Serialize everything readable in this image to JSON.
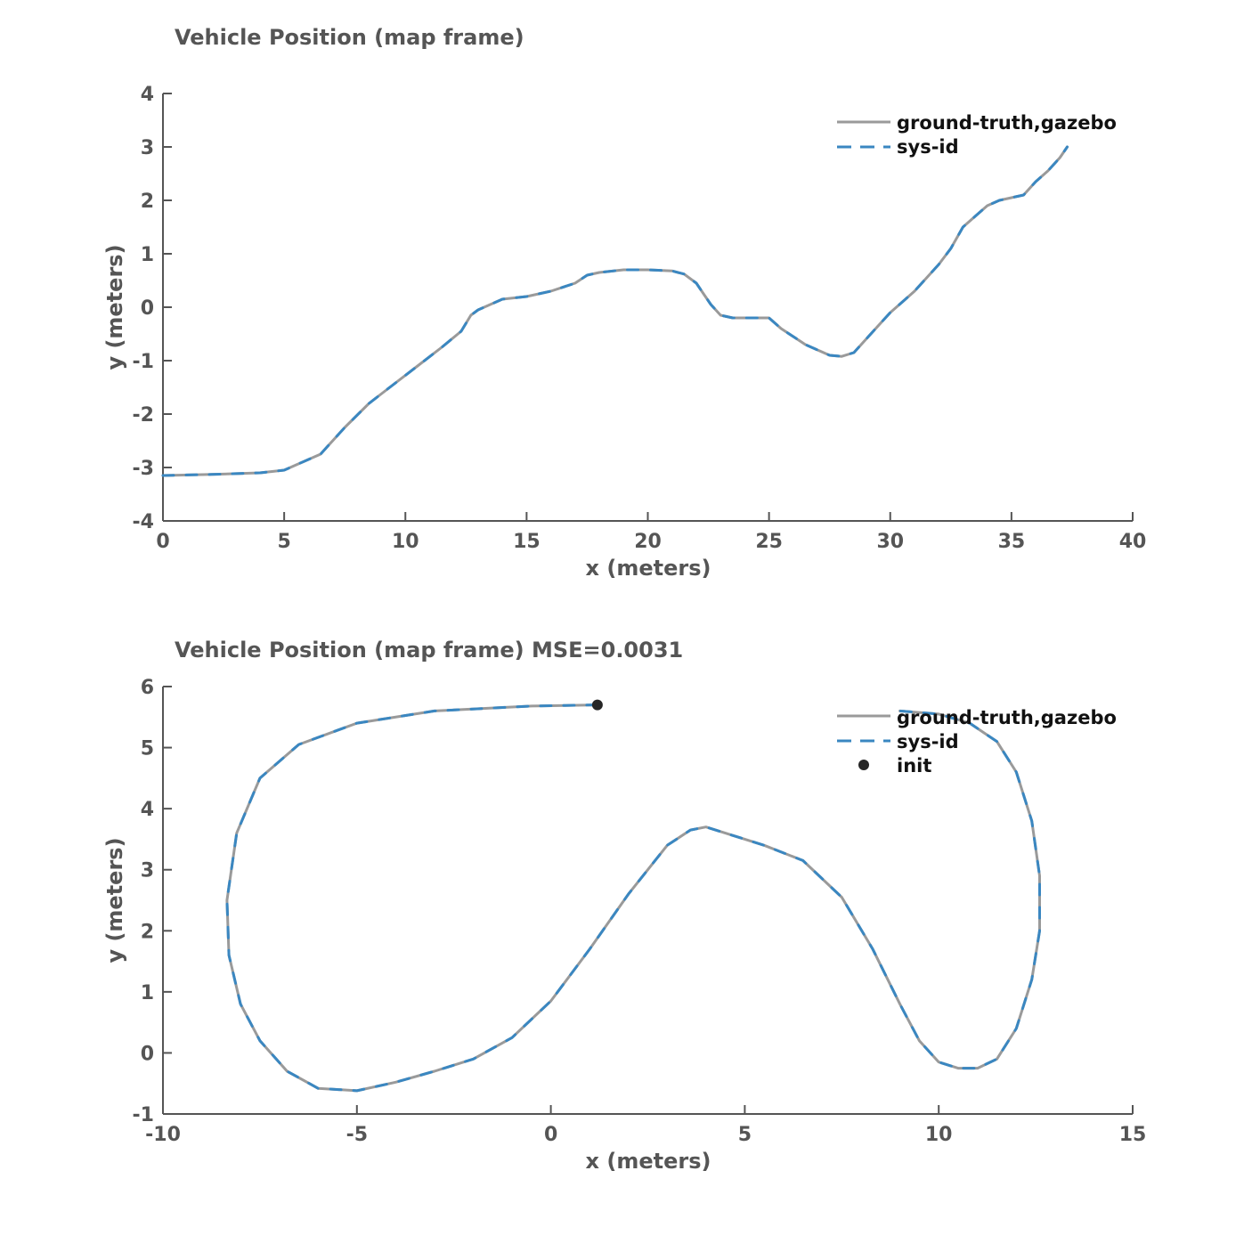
{
  "colors": {
    "ground_truth": "#9a9a9a",
    "sys_id": "#3a87c1",
    "init_marker": "#262626",
    "axis": "#555555"
  },
  "chart_data": [
    {
      "type": "line",
      "title": "Vehicle Position (map frame)",
      "xlabel": "x (meters)",
      "ylabel": "y (meters)",
      "xlim": [
        0,
        40
      ],
      "ylim": [
        -4,
        4
      ],
      "xticks": [
        0,
        5,
        10,
        15,
        20,
        25,
        30,
        35,
        40
      ],
      "yticks": [
        -4,
        -3,
        -2,
        -1,
        0,
        1,
        2,
        3,
        4
      ],
      "xtick_labels": [
        "0",
        "5",
        "10",
        "15",
        "20",
        "25",
        "30",
        "35",
        "40"
      ],
      "ytick_labels": [
        "-4",
        "-3",
        "-2",
        "-1",
        "0",
        "1",
        "2",
        "3",
        "4"
      ],
      "grid": false,
      "legend_position": "top-right",
      "series": [
        {
          "name": "ground-truth,gazebo",
          "style": "solid",
          "x": [
            0,
            2,
            4,
            5,
            5.5,
            6,
            6.5,
            6.8,
            7.5,
            8.5,
            9.5,
            10.5,
            11.5,
            12.3,
            12.7,
            13,
            13.5,
            14,
            15,
            16,
            17,
            17.5,
            18,
            19,
            20,
            21,
            21.5,
            22,
            22.3,
            22.6,
            23,
            23.5,
            24,
            25,
            25.5,
            26,
            26.5,
            27,
            27.5,
            28,
            28.5,
            29,
            29.5,
            30,
            31,
            32,
            32.5,
            33,
            33.5,
            34,
            34.5,
            35,
            35.5,
            36,
            36.5,
            37,
            37.3
          ],
          "y": [
            -3.15,
            -3.13,
            -3.1,
            -3.05,
            -2.95,
            -2.85,
            -2.75,
            -2.6,
            -2.25,
            -1.8,
            -1.45,
            -1.1,
            -0.75,
            -0.45,
            -0.15,
            -0.05,
            0.05,
            0.15,
            0.2,
            0.3,
            0.45,
            0.6,
            0.65,
            0.7,
            0.7,
            0.68,
            0.62,
            0.45,
            0.25,
            0.05,
            -0.15,
            -0.2,
            -0.2,
            -0.2,
            -0.4,
            -0.55,
            -0.7,
            -0.8,
            -0.9,
            -0.92,
            -0.85,
            -0.6,
            -0.35,
            -0.1,
            0.3,
            0.8,
            1.1,
            1.5,
            1.7,
            1.9,
            2.0,
            2.05,
            2.1,
            2.35,
            2.55,
            2.8,
            3.0
          ]
        },
        {
          "name": "sys-id",
          "style": "dashed",
          "x": [
            0,
            2,
            4,
            5,
            5.5,
            6,
            6.5,
            6.8,
            7.5,
            8.5,
            9.5,
            10.5,
            11.5,
            12.3,
            12.7,
            13,
            13.5,
            14,
            15,
            16,
            17,
            17.5,
            18,
            19,
            20,
            21,
            21.5,
            22,
            22.3,
            22.6,
            23,
            23.5,
            24,
            25,
            25.5,
            26,
            26.5,
            27,
            27.5,
            28,
            28.5,
            29,
            29.5,
            30,
            31,
            32,
            32.5,
            33,
            33.5,
            34,
            34.5,
            35,
            35.5,
            36,
            36.5,
            37,
            37.3
          ],
          "y": [
            -3.15,
            -3.13,
            -3.1,
            -3.05,
            -2.95,
            -2.85,
            -2.75,
            -2.6,
            -2.25,
            -1.8,
            -1.45,
            -1.1,
            -0.75,
            -0.45,
            -0.15,
            -0.05,
            0.05,
            0.15,
            0.2,
            0.3,
            0.45,
            0.6,
            0.65,
            0.7,
            0.7,
            0.68,
            0.62,
            0.45,
            0.25,
            0.05,
            -0.15,
            -0.2,
            -0.2,
            -0.2,
            -0.4,
            -0.55,
            -0.7,
            -0.8,
            -0.9,
            -0.92,
            -0.85,
            -0.6,
            -0.35,
            -0.1,
            0.3,
            0.8,
            1.1,
            1.5,
            1.7,
            1.9,
            2.0,
            2.05,
            2.1,
            2.35,
            2.55,
            2.8,
            3.0
          ]
        }
      ]
    },
    {
      "type": "line",
      "title": "Vehicle Position (map frame) MSE=0.0031",
      "xlabel": "x (meters)",
      "ylabel": "y (meters)",
      "xlim": [
        -10,
        15
      ],
      "ylim": [
        -1,
        6
      ],
      "xticks": [
        -10,
        -5,
        0,
        5,
        10,
        15
      ],
      "yticks": [
        -1,
        0,
        1,
        2,
        3,
        4,
        5,
        6
      ],
      "xtick_labels": [
        "-10",
        "-5",
        "0",
        "5",
        "10",
        "15"
      ],
      "ytick_labels": [
        "-1",
        "0",
        "1",
        "2",
        "3",
        "4",
        "5",
        "6"
      ],
      "grid": false,
      "legend_position": "top-right",
      "series": [
        {
          "name": "ground-truth,gazebo",
          "style": "solid",
          "x": [
            1.2,
            -0.5,
            -3,
            -5,
            -6.5,
            -7.5,
            -8.1,
            -8.35,
            -8.3,
            -8.0,
            -7.5,
            -6.8,
            -6.0,
            -5.0,
            -4.0,
            -3.0,
            -2.0,
            -1.0,
            0.0,
            1.0,
            2.0,
            3.0,
            3.6,
            4.0,
            4.5,
            5.5,
            6.5,
            7.5,
            8.3,
            9.0,
            9.5,
            10.0,
            10.5,
            11.0,
            11.5,
            12.0,
            12.4,
            12.6,
            12.6,
            12.4,
            12.0,
            11.5,
            10.8,
            10.0,
            9.0
          ],
          "y": [
            5.7,
            5.68,
            5.6,
            5.4,
            5.05,
            4.5,
            3.6,
            2.5,
            1.6,
            0.8,
            0.2,
            -0.3,
            -0.58,
            -0.62,
            -0.48,
            -0.3,
            -0.1,
            0.25,
            0.85,
            1.7,
            2.6,
            3.4,
            3.65,
            3.7,
            3.6,
            3.4,
            3.15,
            2.55,
            1.7,
            0.8,
            0.2,
            -0.15,
            -0.25,
            -0.25,
            -0.1,
            0.4,
            1.2,
            2.0,
            2.9,
            3.8,
            4.6,
            5.1,
            5.4,
            5.55,
            5.6
          ]
        },
        {
          "name": "sys-id",
          "style": "dashed",
          "x": [
            1.2,
            -0.5,
            -3,
            -5,
            -6.5,
            -7.5,
            -8.1,
            -8.35,
            -8.3,
            -8.0,
            -7.5,
            -6.8,
            -6.0,
            -5.0,
            -4.0,
            -3.0,
            -2.0,
            -1.0,
            0.0,
            1.0,
            2.0,
            3.0,
            3.6,
            4.0,
            4.5,
            5.5,
            6.5,
            7.5,
            8.3,
            9.0,
            9.5,
            10.0,
            10.5,
            11.0,
            11.5,
            12.0,
            12.4,
            12.6,
            12.6,
            12.4,
            12.0,
            11.5,
            10.8,
            10.0,
            9.0
          ],
          "y": [
            5.7,
            5.68,
            5.6,
            5.4,
            5.05,
            4.5,
            3.6,
            2.5,
            1.6,
            0.8,
            0.2,
            -0.3,
            -0.58,
            -0.62,
            -0.48,
            -0.3,
            -0.1,
            0.25,
            0.85,
            1.7,
            2.6,
            3.4,
            3.65,
            3.7,
            3.6,
            3.4,
            3.15,
            2.55,
            1.7,
            0.8,
            0.2,
            -0.15,
            -0.25,
            -0.25,
            -0.1,
            0.4,
            1.2,
            2.0,
            2.9,
            3.8,
            4.6,
            5.1,
            5.4,
            5.55,
            5.6
          ]
        }
      ],
      "points": [
        {
          "name": "init",
          "x": 1.2,
          "y": 5.7
        }
      ]
    }
  ]
}
